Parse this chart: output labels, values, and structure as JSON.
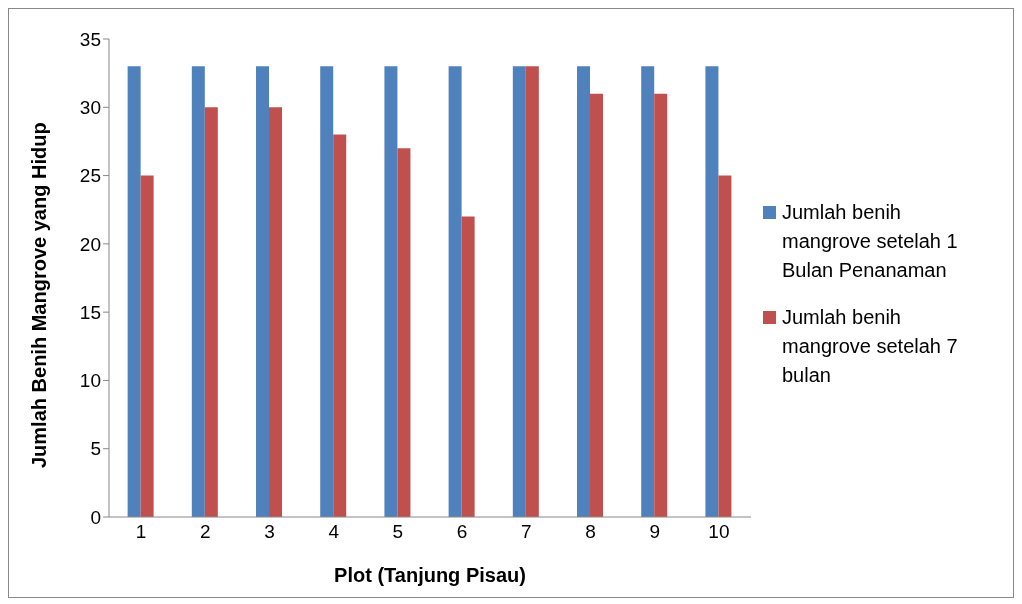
{
  "chart_data": {
    "type": "bar",
    "xlabel": "Plot (Tanjung Pisau)",
    "ylabel": "Jumlah Benih Mangrove yang Hidup",
    "categories": [
      "1",
      "2",
      "3",
      "4",
      "5",
      "6",
      "7",
      "8",
      "9",
      "10"
    ],
    "series": [
      {
        "name": "Jumlah benih mangrove setelah 1 Bulan Penanaman",
        "color": "#4f81bd",
        "values": [
          33,
          33,
          33,
          33,
          33,
          33,
          33,
          33,
          33,
          33
        ]
      },
      {
        "name": "Jumlah benih mangrove setelah 7 bulan",
        "color": "#c0504d",
        "values": [
          25,
          30,
          30,
          28,
          27,
          22,
          33,
          31,
          31,
          25
        ]
      }
    ],
    "ylim": [
      0,
      35
    ],
    "yticks": [
      0,
      5,
      10,
      15,
      20,
      25,
      30,
      35
    ],
    "grid": false,
    "legend": "right"
  }
}
